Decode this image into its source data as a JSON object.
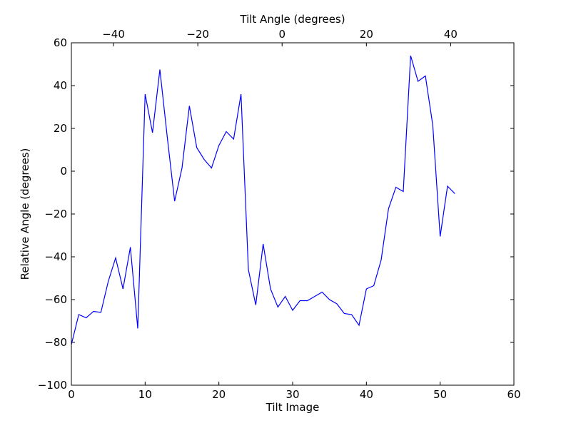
{
  "chart_data": {
    "type": "line",
    "xlabel": "Tilt Image",
    "ylabel": "Relative Angle (degrees)",
    "top_xlabel": "Tilt Angle (degrees)",
    "xlim": [
      0,
      60
    ],
    "ylim": [
      -100,
      60
    ],
    "top_xlim": [
      -50,
      55
    ],
    "x_ticks": [
      0,
      10,
      20,
      30,
      40,
      50,
      60
    ],
    "y_ticks": [
      -100,
      -80,
      -60,
      -40,
      -20,
      0,
      20,
      40,
      60
    ],
    "top_x_ticks": [
      -40,
      -20,
      0,
      20,
      40
    ],
    "x_tick_labels": [
      "0",
      "10",
      "20",
      "30",
      "40",
      "50",
      "60"
    ],
    "y_tick_labels": [
      "−100",
      "−80",
      "−60",
      "−40",
      "−20",
      "0",
      "20",
      "40",
      "60"
    ],
    "top_x_tick_labels": [
      "−40",
      "−20",
      "0",
      "20",
      "40"
    ],
    "grid": false,
    "series": [
      {
        "color": "#0000ff",
        "x": [
          0,
          1,
          2,
          3,
          4,
          5,
          6,
          7,
          8,
          9,
          10,
          11,
          12,
          13,
          14,
          15,
          16,
          17,
          18,
          19,
          20,
          21,
          22,
          23,
          24,
          25,
          26,
          27,
          28,
          29,
          30,
          31,
          32,
          33,
          34,
          35,
          36,
          37,
          38,
          39,
          40,
          41,
          42,
          43,
          44,
          45,
          46,
          47,
          48,
          49,
          50,
          51,
          52
        ],
        "values": [
          -81,
          -67,
          -68.5,
          -65.5,
          -66,
          -51.5,
          -40.5,
          -55,
          -35.5,
          -73.5,
          36,
          18,
          47.5,
          16,
          -14,
          1.5,
          30.5,
          11,
          5.5,
          1.5,
          12,
          18.5,
          15,
          36,
          -46,
          -62.5,
          -34,
          -55,
          -63.5,
          -58.5,
          -65,
          -60.5,
          -60.5,
          -58.5,
          -56.5,
          -60,
          -62,
          -66.5,
          -67,
          -72,
          -55,
          -53.5,
          -41.5,
          -17.5,
          -7.5,
          -9.5,
          54,
          42,
          44.5,
          21.5,
          -30.5,
          -7,
          -10.5
        ]
      }
    ]
  }
}
